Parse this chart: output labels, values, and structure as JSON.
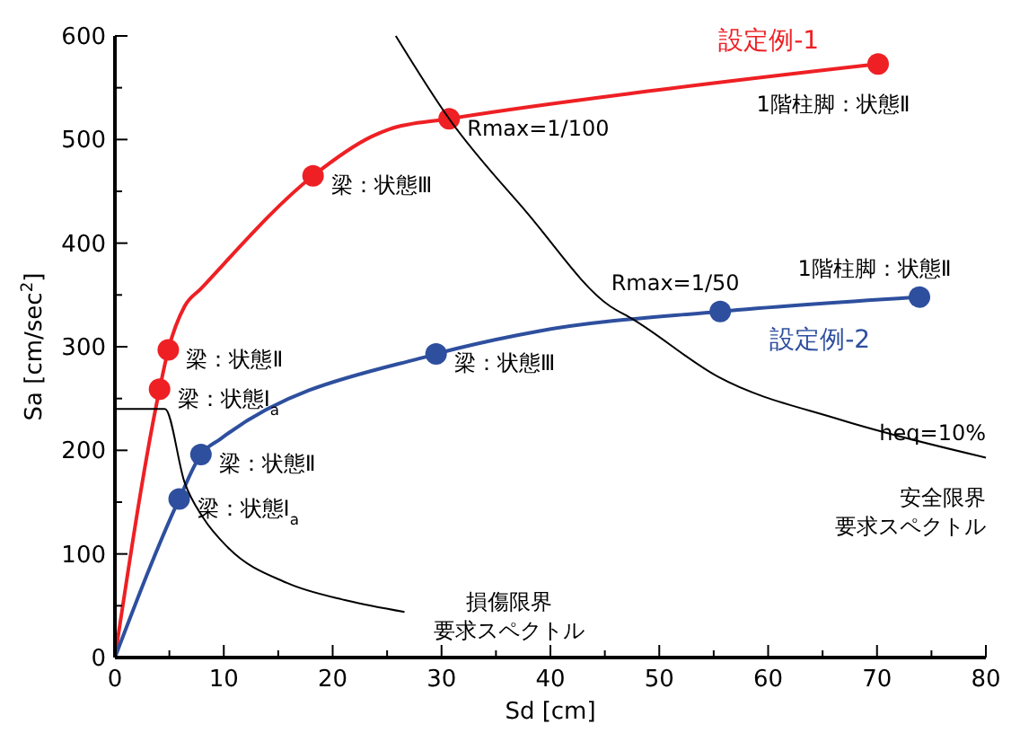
{
  "chart_data": {
    "type": "line",
    "xlabel": "Sd [cm]",
    "ylabel": "Sa [cm/sec$^{2}$]",
    "xlim": [
      0,
      80
    ],
    "ylim": [
      0,
      600
    ],
    "xticks": [
      0,
      {
        "value": 5,
        "label": null
      },
      10,
      {
        "value": 15,
        "label": null
      },
      20,
      {
        "value": 25,
        "label": null
      },
      30,
      {
        "value": 35,
        "label": null
      },
      40,
      {
        "value": 45,
        "label": null
      },
      50,
      {
        "value": 55,
        "label": null
      },
      60,
      {
        "value": 65,
        "label": null
      },
      70,
      {
        "value": 75,
        "label": null
      },
      80
    ],
    "yticks": [
      0,
      {
        "value": 50,
        "label": null
      },
      100,
      {
        "value": 150,
        "label": null
      },
      200,
      {
        "value": 250,
        "label": null
      },
      300,
      {
        "value": 350,
        "label": null
      },
      400,
      {
        "value": 450,
        "label": null
      },
      500,
      {
        "value": 550,
        "label": null
      },
      600
    ],
    "grid": false,
    "marker": "none",
    "line_style": "solid",
    "series": [
      {
        "name": "設定例-1",
        "color": "#ee2024",
        "x": [
          0,
          4.1,
          4.9,
          6.4,
          7.9,
          18.2,
          23.6,
          25.2,
          30.7,
          50,
          70.1
        ],
        "values": [
          0,
          259,
          297,
          339,
          356,
          465,
          503,
          510,
          520,
          548,
          573
        ]
      },
      {
        "name": "設定例-2",
        "color": "#2e4f9e",
        "x": [
          0,
          5.9,
          7.9,
          9.7,
          29.5,
          38.9,
          55.6,
          73.9
        ],
        "values": [
          0,
          153,
          196,
          211,
          293,
          315,
          334,
          348
        ]
      },
      {
        "type": "scatter",
        "marker": "circle",
        "color": "#ee2024",
        "x": [
          4.1,
          4.9,
          18.2,
          30.7,
          70.1
        ],
        "values": [
          259,
          297,
          465,
          520,
          573
        ]
      },
      {
        "type": "scatter",
        "marker": "circle",
        "color": "#2e4f9e",
        "x": [
          5.9,
          7.9,
          29.5,
          55.6,
          73.9
        ],
        "values": [
          153,
          196,
          293,
          334,
          348
        ]
      },
      {
        "color": "#000000",
        "x": [
          0,
          4.6,
          6.4,
          8.1,
          10.4,
          15.8,
          21.3,
          26.6
        ],
        "values": [
          240,
          240,
          169,
          135,
          106,
          72,
          55,
          44
        ]
      },
      {
        "color": "#000000",
        "x": [
          25.8,
          30.7,
          37.8,
          45.5,
          47.5,
          55.4,
          66.5,
          80
        ],
        "values": [
          600,
          520,
          430,
          339,
          327,
          271,
          230,
          193
        ]
      }
    ],
    "annotations": [
      {
        "text": "梁：状態Ⅱ",
        "x": 4.9,
        "y": 297
      },
      {
        "text": "梁：状態Ⅰ$_{a}$",
        "x": 4.1,
        "y": 259
      },
      {
        "text": "梁：状態Ⅲ",
        "x": 18.2,
        "y": 465
      },
      {
        "text": "Rmax=1/100",
        "x": 30.7,
        "y": 520
      },
      {
        "text": "1階柱脚：状態Ⅱ",
        "x": 70.1,
        "y": 573
      },
      {
        "text": "1階柱脚：状態Ⅱ",
        "x": 73.9,
        "y": 348
      },
      {
        "text": "Rmax=1/50",
        "x": 55.6,
        "y": 334
      },
      {
        "text": "梁：状態Ⅲ",
        "x": 29.5,
        "y": 293
      },
      {
        "text": "梁：状態Ⅱ",
        "x": 7.9,
        "y": 196
      },
      {
        "text": "梁：状態Ⅰ$_{a}$",
        "x": 5.9,
        "y": 153
      },
      {
        "text": "heq=10%",
        "x": 80,
        "y": 193
      },
      {
        "text": "安全限界要求スペクトル",
        "x": 80,
        "y": 193
      },
      {
        "text": "損傷限界要求スペクトル",
        "x": 26.6,
        "y": 44
      }
    ]
  }
}
